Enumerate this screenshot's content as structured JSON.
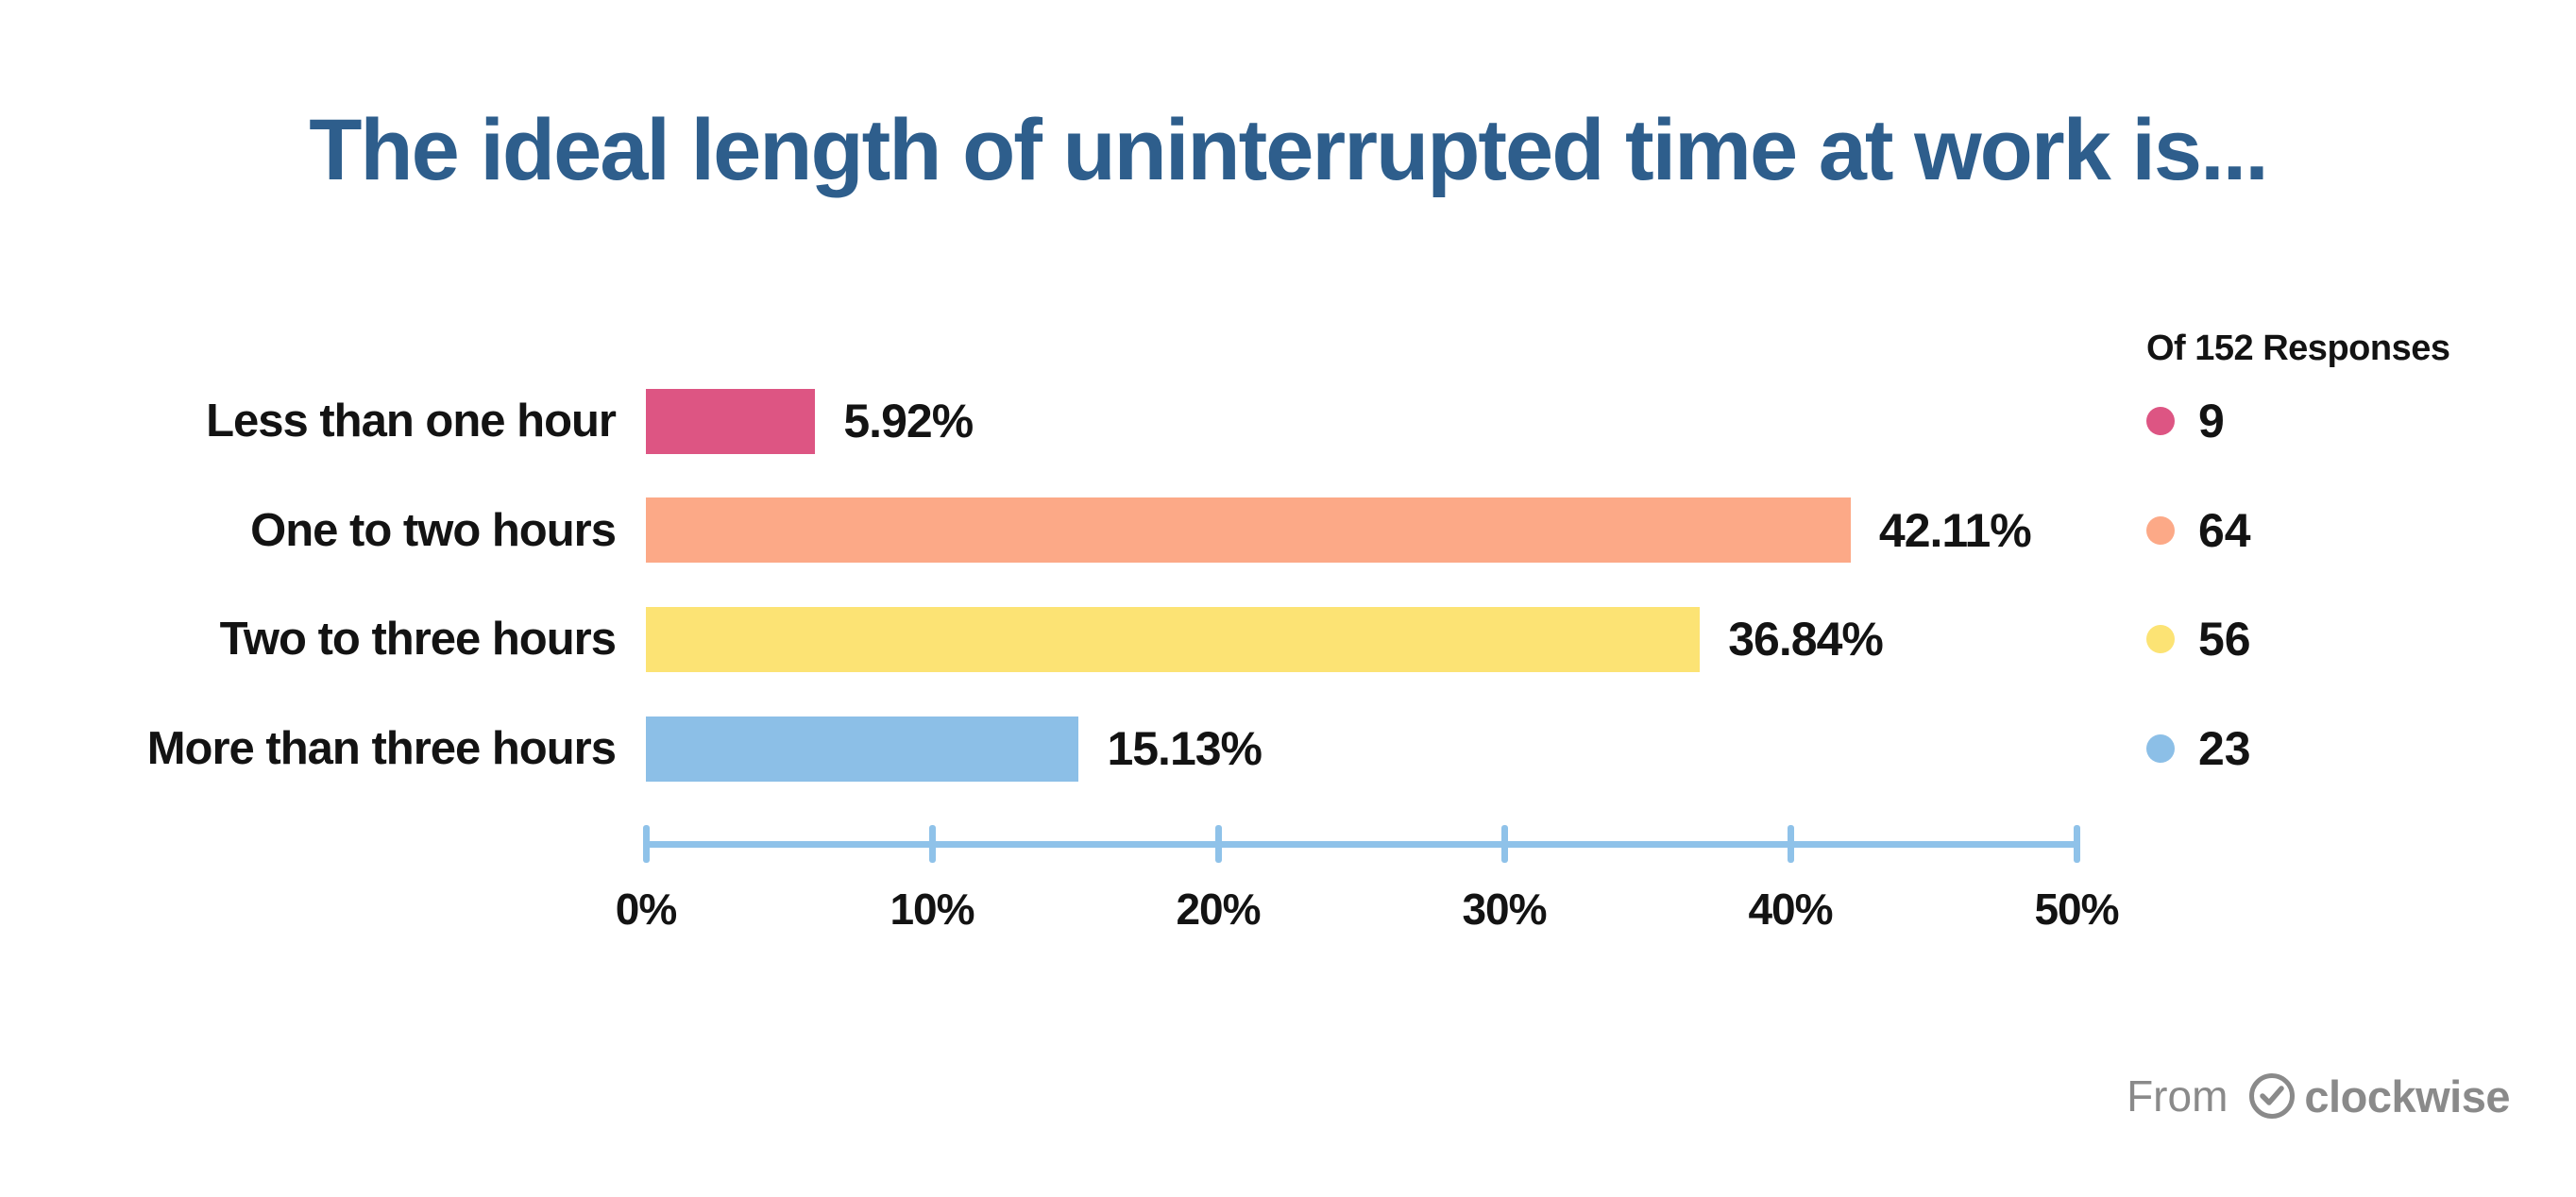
{
  "title": "The ideal length of uninterrupted time at work is...",
  "chart_data": {
    "type": "bar",
    "orientation": "horizontal",
    "title": "The ideal length of uninterrupted time at work is...",
    "categories": [
      "Less than one hour",
      "One to two hours",
      "Two to three hours",
      "More than three hours"
    ],
    "values": [
      5.92,
      42.11,
      36.84,
      15.13
    ],
    "value_labels": [
      "5.92%",
      "42.11%",
      "36.84%",
      "15.13%"
    ],
    "counts": [
      9,
      64,
      56,
      23
    ],
    "colors": [
      "#dd5583",
      "#fca987",
      "#fce374",
      "#8cbfe7"
    ],
    "xlim": [
      0,
      50
    ],
    "x_ticks": [
      0,
      10,
      20,
      30,
      40,
      50
    ],
    "x_tick_labels": [
      "0%",
      "10%",
      "20%",
      "30%",
      "40%",
      "50%"
    ],
    "grid": false,
    "legend_title": "Of 152 Responses",
    "legend_position": "right",
    "total_responses": 152,
    "axis_color": "#8fc2e9"
  },
  "legend": {
    "title": "Of 152 Responses",
    "items": [
      {
        "count": "9",
        "color": "#dd5583"
      },
      {
        "count": "64",
        "color": "#fca987"
      },
      {
        "count": "56",
        "color": "#fce374"
      },
      {
        "count": "23",
        "color": "#8cbfe7"
      }
    ]
  },
  "footer": {
    "from_label": "From",
    "brand": "clockwise"
  },
  "colors": {
    "title_blue": "#2e5e8c",
    "text_black": "#131313",
    "axis_blue": "#8fc2e9",
    "footer_gray": "#8a8a8a"
  }
}
